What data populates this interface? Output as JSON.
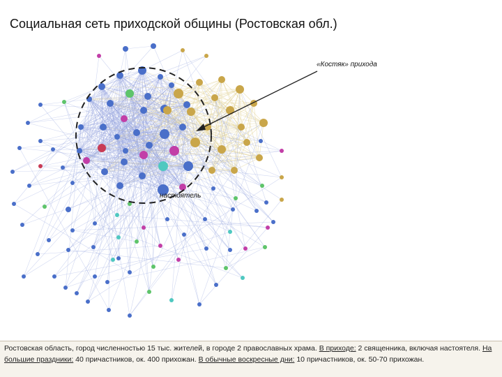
{
  "title": "Социальная сеть приходской общины (Ростовская обл.)",
  "labels": {
    "core": "«Костяк» прихода",
    "priest": "настоятель"
  },
  "colors": {
    "blue": "#4a6fc9",
    "gold": "#c9a64a",
    "magenta": "#c23ea7",
    "green": "#5ec46a",
    "teal": "#4fc8c0",
    "red": "#c83b55",
    "edge_blue": "#9aa8e0",
    "edge_gold": "#e3d49a"
  },
  "footer": {
    "t1": "Ростовская область, город численностью 15 тыс. жителей, в городе 2 православных храма. ",
    "u1": "В приходе:",
    "t2": " 2 священника, включая настоятеля. ",
    "u2": "На большие праздники:",
    "t3": " 40 причастников, ок. 400 прихожан. ",
    "u3": "В обычные воскресные дни:",
    "t4": " 10 причастников, ок. 50-70 прихожан."
  }
}
